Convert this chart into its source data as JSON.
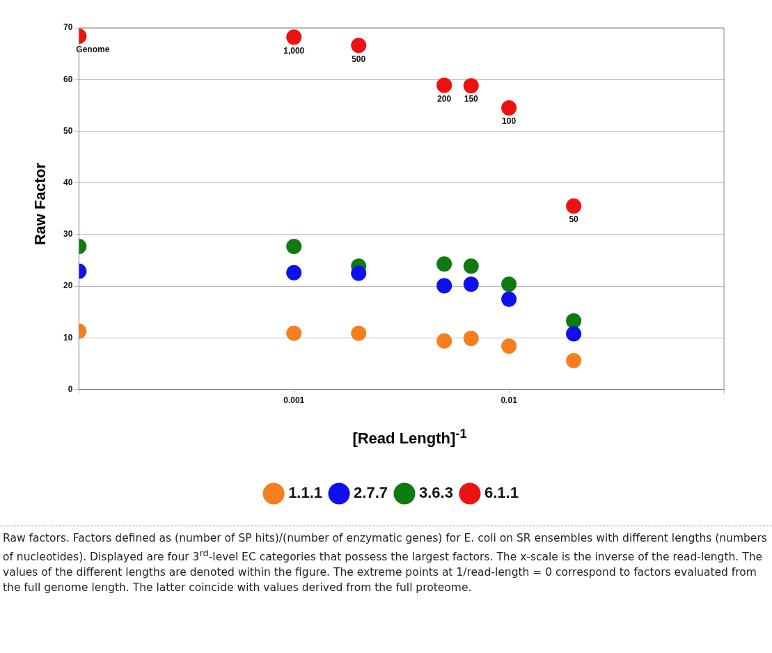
{
  "chart_data": {
    "type": "scatter",
    "xlabel": "[Read Length]$^{-1}$",
    "ylabel": "Raw Factor",
    "x": [
      0.0001,
      0.001,
      0.002,
      0.005,
      0.006667,
      0.01,
      0.02
    ],
    "series": [
      {
        "name": "1.1.1",
        "color": "#f57f1f",
        "values": [
          11.3,
          10.9,
          10.9,
          9.4,
          9.9,
          8.4,
          5.6
        ]
      },
      {
        "name": "2.7.7",
        "color": "#1010ee",
        "values": [
          22.9,
          22.6,
          22.5,
          20.1,
          20.4,
          17.5,
          10.8
        ]
      },
      {
        "name": "3.6.3",
        "color": "#0f7a0f",
        "values": [
          27.7,
          27.7,
          23.9,
          24.3,
          23.9,
          20.4,
          13.3
        ]
      },
      {
        "name": "6.1.1",
        "color": "#ee1111",
        "values": [
          68.4,
          68.2,
          66.6,
          58.9,
          58.8,
          54.5,
          35.5
        ]
      }
    ],
    "log": "x",
    "xlim": [
      0.0001,
      0.1
    ],
    "xticks": [
      {
        "value": 0.0001,
        "label": null
      },
      0.001,
      0.01,
      {
        "value": 0.1,
        "label": null
      }
    ],
    "ylim": [
      0,
      70
    ],
    "yticks": [
      0,
      10,
      20,
      30,
      40,
      50,
      60,
      70
    ],
    "grid": "y",
    "legend": "bottom",
    "marker": "circle",
    "annotations": [
      {
        "text": "Genome",
        "x": 0.0001,
        "y": 68.4
      },
      {
        "text": "1,000",
        "x": 0.001,
        "y": 68.2
      },
      {
        "text": "500",
        "x": 0.002,
        "y": 66.6
      },
      {
        "text": "200",
        "x": 0.005,
        "y": 58.9
      },
      {
        "text": "150",
        "x": 0.006667,
        "y": 58.8
      },
      {
        "text": "100",
        "x": 0.01,
        "y": 54.5
      },
      {
        "text": "50",
        "x": 0.02,
        "y": 35.5
      },
      "Raw factors. Factors defined as (number of SP hits)/(number of enzymatic genes) for E. coli on SR ensembles with different lengths (numbers of nucleotides). Displayed are four 3$^{rd}$-level EC categories that possess the largest factors. The x-scale is the inverse of the read-length. The values of the different lengths are denoted within the figure. The extreme points at 1/read-length = 0 correspond to factors evaluated from the full genome length. The latter coincide with values derived from the full proteome."
    ]
  }
}
